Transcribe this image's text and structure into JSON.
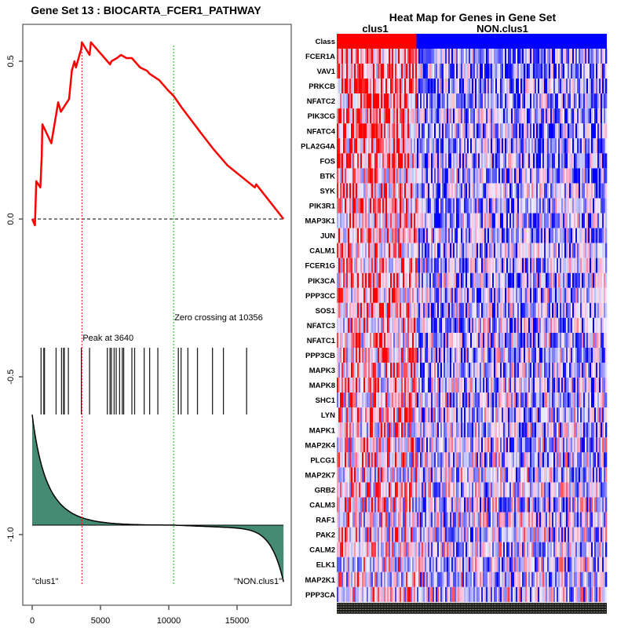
{
  "chart_data": [
    {
      "type": "line",
      "panel": "enrichment",
      "title": "Gene Set  13 : BIOCARTA_FCER1_PATHWAY",
      "xlabel": "",
      "ylabel": "",
      "xlim": [
        0,
        18400
      ],
      "ylim": [
        -1.2,
        0.63
      ],
      "x_ticks": [
        0,
        5000,
        10000,
        15000
      ],
      "x_tick_labels": [
        "0",
        "5000",
        "10000",
        "15000"
      ],
      "y_ticks": [
        0.5,
        0.0,
        -0.5,
        -1.0
      ],
      "y_tick_labels": [
        "0.5",
        "0.0",
        "-0.5",
        "-1.0"
      ],
      "grid": false,
      "line_color": "#ff0000",
      "running_enrichment_score": {
        "x": [
          0,
          200,
          300,
          600,
          700,
          750,
          1400,
          1900,
          2100,
          2700,
          2900,
          3100,
          3200,
          3600,
          3640,
          4200,
          4300,
          5700,
          5800,
          6200,
          6500,
          6900,
          7300,
          7900,
          8400,
          8600,
          9300,
          9900,
          10356,
          11000,
          11700,
          12400,
          13300,
          14300,
          16300,
          16400,
          18400
        ],
        "y": [
          0.0,
          -0.02,
          0.12,
          0.1,
          0.2,
          0.3,
          0.24,
          0.37,
          0.34,
          0.38,
          0.47,
          0.5,
          0.48,
          0.54,
          0.56,
          0.52,
          0.56,
          0.49,
          0.5,
          0.51,
          0.52,
          0.51,
          0.51,
          0.48,
          0.47,
          0.46,
          0.44,
          0.41,
          0.39,
          0.35,
          0.31,
          0.27,
          0.22,
          0.17,
          0.1,
          0.11,
          0.0
        ]
      },
      "zero_line": {
        "y": 0.0,
        "style": "dashed",
        "color": "#000000"
      },
      "peak": {
        "x": 3640,
        "label": "Peak at 3640",
        "color": "#ff0000"
      },
      "zero_crossing": {
        "x": 10356,
        "label": "Zero crossing at 10356",
        "color": "#00cc00"
      },
      "hit_positions": [
        650,
        850,
        900,
        1750,
        2150,
        2300,
        2350,
        2650,
        3600,
        4200,
        5500,
        5700,
        5800,
        6000,
        6150,
        6400,
        6600,
        6700,
        7300,
        7500,
        8200,
        8600,
        9200,
        10700,
        10900,
        11400,
        12100,
        13200,
        14000,
        15700
      ],
      "ranked_metric": {
        "fill_color": "#458a72",
        "baseline": -0.97,
        "start_value": -0.62,
        "end_value": -1.15,
        "zero_crossing_x": 10356
      },
      "class_labels": {
        "left": "\"clus1\"",
        "right": "\"NON.clus1\""
      }
    },
    {
      "type": "heatmap",
      "panel": "heatmap",
      "title": "Heat Map for Genes in Gene Set",
      "column_groups": [
        {
          "name": "clus1",
          "fraction": 0.295,
          "color": "#ff0000"
        },
        {
          "name": "NON.clus1",
          "fraction": 0.705,
          "color": "#0000ff"
        }
      ],
      "class_row_label": "Class",
      "rows": [
        "FCER1A",
        "VAV1",
        "PRKCB",
        "NFATC2",
        "PIK3CG",
        "NFATC4",
        "PLA2G4A",
        "FOS",
        "BTK",
        "SYK",
        "PIK3R1",
        "MAP3K1",
        "JUN",
        "CALM1",
        "FCER1G",
        "PIK3CA",
        "PPP3CC",
        "SOS1",
        "NFATC3",
        "NFATC1",
        "PPP3CB",
        "MAPK3",
        "MAPK8",
        "SHC1",
        "LYN",
        "MAPK1",
        "MAP2K4",
        "PLCG1",
        "MAP2K7",
        "GRB2",
        "CALM3",
        "RAF1",
        "PAK2",
        "CALM2",
        "ELK1",
        "MAP2K1",
        "PPP3CA"
      ],
      "colorscale": {
        "low": "#0000ff",
        "mid": "#f0f0ff",
        "high": "#ff0000"
      }
    }
  ]
}
